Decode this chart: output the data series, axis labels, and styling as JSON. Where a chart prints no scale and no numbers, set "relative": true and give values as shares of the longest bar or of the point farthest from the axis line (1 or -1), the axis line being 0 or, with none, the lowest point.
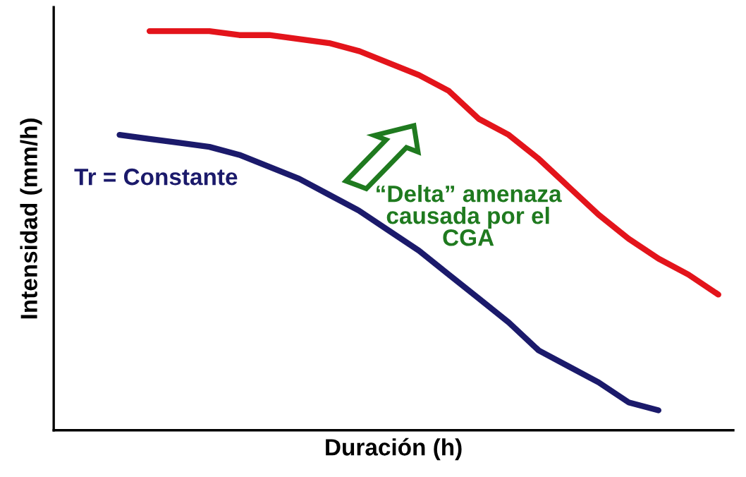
{
  "chart_data": {
    "type": "line",
    "relative": true,
    "xlabel": "Duración (h)",
    "ylabel": "Intensidad (mm/h)",
    "categories": [
      null,
      null,
      null,
      null,
      null,
      null,
      null,
      null,
      null,
      null,
      null,
      null,
      null,
      null,
      null,
      null,
      null,
      null,
      null,
      null,
      null
    ],
    "series": [
      {
        "color": "#e3141b",
        "values": [
          null,
          1.0,
          1.0,
          1.0,
          0.99,
          0.99,
          0.98,
          0.97,
          0.95,
          0.92,
          0.89,
          0.85,
          0.78,
          0.74,
          0.68,
          0.61,
          0.54,
          0.48,
          0.43,
          0.39,
          0.34
        ]
      },
      {
        "color": "#1b1a6b",
        "values": [
          0.74,
          0.73,
          0.72,
          0.71,
          0.69,
          0.66,
          0.63,
          0.59,
          0.55,
          0.5,
          0.45,
          0.39,
          0.33,
          0.27,
          0.2,
          0.16,
          0.12,
          0.07,
          0.05,
          null,
          null
        ]
      }
    ],
    "annotations": [
      "Tr = Constante",
      "“Delta” amenaza\ncausada por el\nCGA"
    ],
    "grid": false,
    "legend": false,
    "marker": "none",
    "line_style": "solid",
    "tick_labels": false
  }
}
